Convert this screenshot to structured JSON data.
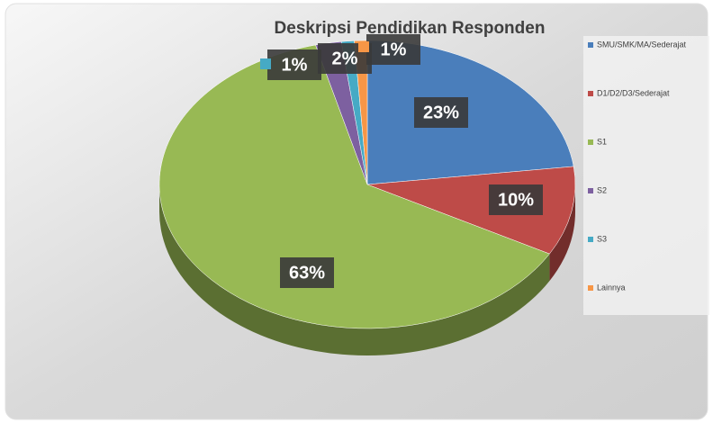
{
  "chart_data": {
    "type": "pie",
    "title": "Deskripsi Pendidikan Responden",
    "categories": [
      "SMU/SMK/MA/Sederajat",
      "D1/D2/D3/Sederajat",
      "S1",
      "S2",
      "S3",
      "Lainnya"
    ],
    "values": [
      23,
      10,
      63,
      2,
      1,
      1
    ],
    "value_labels": [
      "23%",
      "10%",
      "63%",
      "2%",
      "1%",
      "1%"
    ],
    "colors": [
      "#4a7ebb",
      "#be4b48",
      "#98b954",
      "#7d60a0",
      "#46aac5",
      "#f79646"
    ],
    "legend": "right"
  }
}
